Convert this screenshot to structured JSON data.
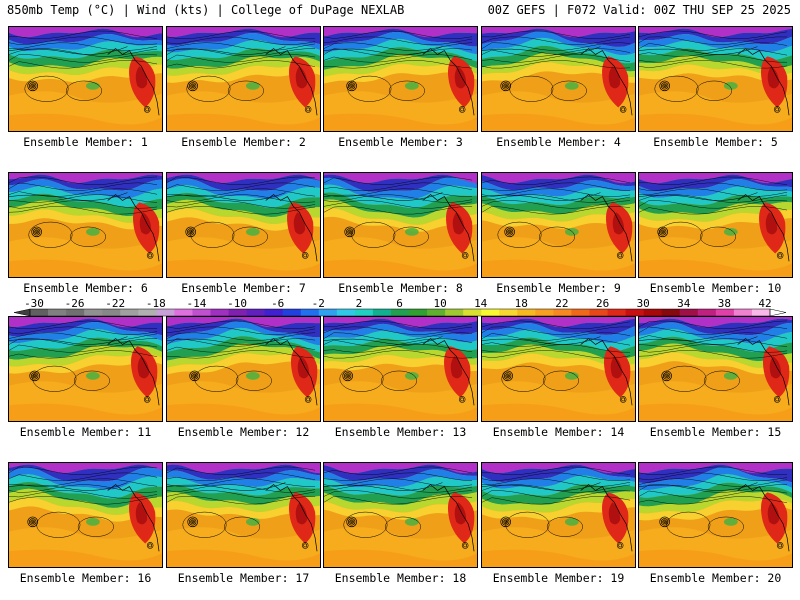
{
  "header": {
    "left": "850mb Temp (°C) | Wind (kts) | College of DuPage NEXLAB",
    "right": "00Z GEFS | F072 Valid: 00Z THU SEP 25 2025"
  },
  "members": [
    {
      "label": "Ensemble Member: 1"
    },
    {
      "label": "Ensemble Member: 2"
    },
    {
      "label": "Ensemble Member: 3"
    },
    {
      "label": "Ensemble Member: 4"
    },
    {
      "label": "Ensemble Member: 5"
    },
    {
      "label": "Ensemble Member: 6"
    },
    {
      "label": "Ensemble Member: 7"
    },
    {
      "label": "Ensemble Member: 8"
    },
    {
      "label": "Ensemble Member: 9"
    },
    {
      "label": "Ensemble Member: 10"
    },
    {
      "label": "Ensemble Member: 11"
    },
    {
      "label": "Ensemble Member: 12"
    },
    {
      "label": "Ensemble Member: 13"
    },
    {
      "label": "Ensemble Member: 14"
    },
    {
      "label": "Ensemble Member: 15"
    },
    {
      "label": "Ensemble Member: 16"
    },
    {
      "label": "Ensemble Member: 17"
    },
    {
      "label": "Ensemble Member: 18"
    },
    {
      "label": "Ensemble Member: 19"
    },
    {
      "label": "Ensemble Member: 20"
    }
  ],
  "colorbar": {
    "ticks": [
      "-30",
      "-26",
      "-22",
      "-18",
      "-14",
      "-10",
      "-6",
      "-2",
      "2",
      "6",
      "10",
      "14",
      "18",
      "22",
      "26",
      "30",
      "34",
      "38",
      "42"
    ],
    "colors": [
      "#606060",
      "#808080",
      "#707070",
      "#909090",
      "#888888",
      "#a0a0a0",
      "#b0b0b0",
      "#c8a0d8",
      "#e070e0",
      "#c050d0",
      "#a030c0",
      "#8020b0",
      "#6020c0",
      "#4020d0",
      "#2040e0",
      "#2070f0",
      "#30a0f0",
      "#30c8e8",
      "#20d0c0",
      "#10b090",
      "#20a050",
      "#30a030",
      "#60b030",
      "#a0c830",
      "#d8e030",
      "#f8f830",
      "#f8d830",
      "#f8b820",
      "#f8a020",
      "#f88820",
      "#f06818",
      "#e84818",
      "#e02818",
      "#c81010",
      "#a80808",
      "#880810",
      "#a01048",
      "#c02080",
      "#e040a8",
      "#f080d0",
      "#f8b8e8"
    ]
  }
}
